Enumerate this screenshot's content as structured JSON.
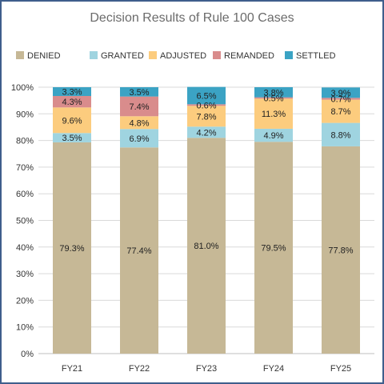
{
  "chart_data": {
    "type": "bar",
    "stacked": true,
    "title": "Decision Results of Rule 100 Cases",
    "categories": [
      "FY21",
      "FY22",
      "FY23",
      "FY24",
      "FY25"
    ],
    "series": [
      {
        "name": "DENIED",
        "color": "#c6b896",
        "values": [
          79.3,
          77.4,
          81.0,
          79.5,
          77.8
        ]
      },
      {
        "name": "GRANTED",
        "color": "#9fd4e0",
        "values": [
          3.5,
          6.9,
          4.2,
          4.9,
          8.8
        ]
      },
      {
        "name": "ADJUSTED",
        "color": "#fccc7e",
        "values": [
          9.6,
          4.8,
          7.8,
          11.3,
          8.7
        ]
      },
      {
        "name": "REMANDED",
        "color": "#d98c8c",
        "values": [
          4.3,
          7.4,
          0.6,
          0.5,
          0.7
        ]
      },
      {
        "name": "SETTLED",
        "color": "#3ba3c4",
        "values": [
          3.3,
          3.5,
          6.5,
          3.8,
          3.9
        ]
      }
    ],
    "data_labels": [
      [
        "79.3%",
        "77.4%",
        "81.0%",
        "79.5%",
        "77.8%"
      ],
      [
        "3.5%",
        "6.9%",
        "4.2%",
        "4.9%",
        "8.8%"
      ],
      [
        "9.6%",
        "4.8%",
        "7.8%",
        "11.3%",
        "8.7%"
      ],
      [
        "4.3%",
        "7.4%",
        "0.6%",
        "0.5%",
        "0.7%"
      ],
      [
        "3.3%",
        "3.5%",
        "6.5%",
        "3.8%",
        "3.9%"
      ]
    ],
    "y_ticks": [
      "0%",
      "10%",
      "20%",
      "30%",
      "40%",
      "50%",
      "60%",
      "70%",
      "80%",
      "90%",
      "100%"
    ],
    "ylim": [
      0,
      100
    ],
    "grid": true,
    "legend": "top"
  }
}
